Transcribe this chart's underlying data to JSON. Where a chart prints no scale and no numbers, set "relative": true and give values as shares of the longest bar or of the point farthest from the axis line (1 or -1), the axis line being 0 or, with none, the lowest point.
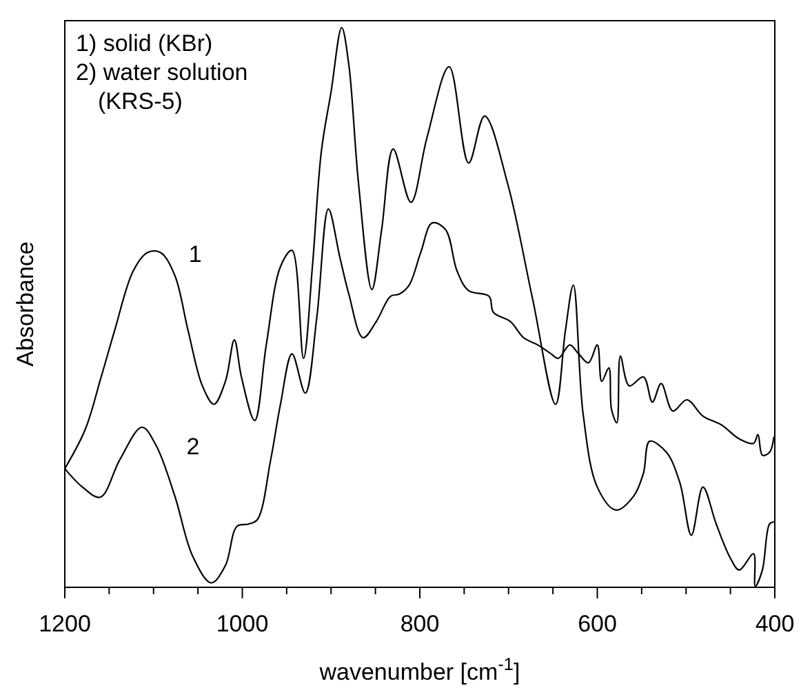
{
  "chart_data": {
    "type": "line",
    "relative": true,
    "xlabel": "wavenumber [cm$^{-1}$]",
    "ylabel": "Absorbance",
    "xlim": [
      1200,
      400
    ],
    "xticks": [
      1200,
      {
        "value": 1150,
        "label": null
      },
      1000,
      {
        "value": 1100,
        "label": null
      },
      {
        "value": 1050,
        "label": null
      },
      {
        "value": 950,
        "label": null
      },
      {
        "value": 900,
        "label": null
      },
      {
        "value": 850,
        "label": null
      },
      800,
      {
        "value": 750,
        "label": null
      },
      {
        "value": 700,
        "label": null
      },
      {
        "value": 650,
        "label": null
      },
      600,
      {
        "value": 550,
        "label": null
      },
      {
        "value": 500,
        "label": null
      },
      {
        "value": 450,
        "label": null
      },
      400
    ],
    "annotations": [
      "1) solid (KBr)",
      "2) water solution",
      "(KRS-5)"
    ],
    "grid": false,
    "marker": "none",
    "line_style": "solid",
    "series": [
      {
        "name": "1",
        "color": "#000000",
        "x": [
          1200,
          1177,
          1159,
          1144,
          1123,
          1107,
          1092,
          1076,
          1061,
          1045,
          1032,
          1019,
          1009,
          1001,
          986,
          973,
          957,
          944,
          931,
          921,
          911,
          900,
          888,
          880,
          869,
          854,
          843,
          830,
          810,
          792,
          767,
          745,
          727,
          701,
          673,
          647,
          636,
          627,
          616,
          600,
          579,
          559,
          548,
          541,
          522,
          507,
          494,
          481,
          466,
          450,
          440,
          424,
          422,
          414,
          406,
          401
        ],
        "values": [
          0.212,
          0.282,
          0.376,
          0.458,
          0.565,
          0.598,
          0.598,
          0.557,
          0.458,
          0.36,
          0.327,
          0.368,
          0.442,
          0.376,
          0.298,
          0.433,
          0.573,
          0.602,
          0.409,
          0.573,
          0.778,
          0.885,
          1,
          0.934,
          0.721,
          0.532,
          0.639,
          0.783,
          0.688,
          0.803,
          0.93,
          0.758,
          0.842,
          0.721,
          0.516,
          0.327,
          0.458,
          0.54,
          0.31,
          0.179,
          0.138,
          0.163,
          0.204,
          0.261,
          0.241,
          0.187,
          0.093,
          0.179,
          0.113,
          0.052,
          0.031,
          0.06,
          0.002,
          0.031,
          0.113,
          0.117
        ]
      },
      {
        "name": "2",
        "color": "#000000",
        "x": [
          1200,
          1180,
          1160,
          1138,
          1113,
          1097,
          1076,
          1056,
          1035,
          1019,
          1006,
          993,
          983,
          968,
          957,
          944,
          929,
          916,
          903,
          890,
          880,
          864,
          849,
          833,
          823,
          812,
          799,
          786,
          771,
          758,
          745,
          722,
          717,
          698,
          683,
          667,
          652,
          644,
          631,
          621,
          610,
          600,
          595,
          587,
          584,
          578,
          574,
          564,
          548,
          538,
          528,
          515,
          499,
          481,
          460,
          440,
          424,
          419,
          414,
          406,
          401
        ],
        "values": [
          0.212,
          0.179,
          0.161,
          0.228,
          0.286,
          0.253,
          0.163,
          0.056,
          0.008,
          0.039,
          0.109,
          0.113,
          0.121,
          0.228,
          0.327,
          0.417,
          0.347,
          0.483,
          0.676,
          0.589,
          0.524,
          0.446,
          0.475,
          0.52,
          0.524,
          0.54,
          0.598,
          0.651,
          0.639,
          0.565,
          0.53,
          0.52,
          0.491,
          0.475,
          0.446,
          0.433,
          0.417,
          0.409,
          0.433,
          0.417,
          0.401,
          0.433,
          0.368,
          0.392,
          0.318,
          0.294,
          0.413,
          0.36,
          0.376,
          0.331,
          0.364,
          0.315,
          0.335,
          0.306,
          0.29,
          0.265,
          0.257,
          0.273,
          0.236,
          0.241,
          0.269
        ]
      }
    ]
  }
}
